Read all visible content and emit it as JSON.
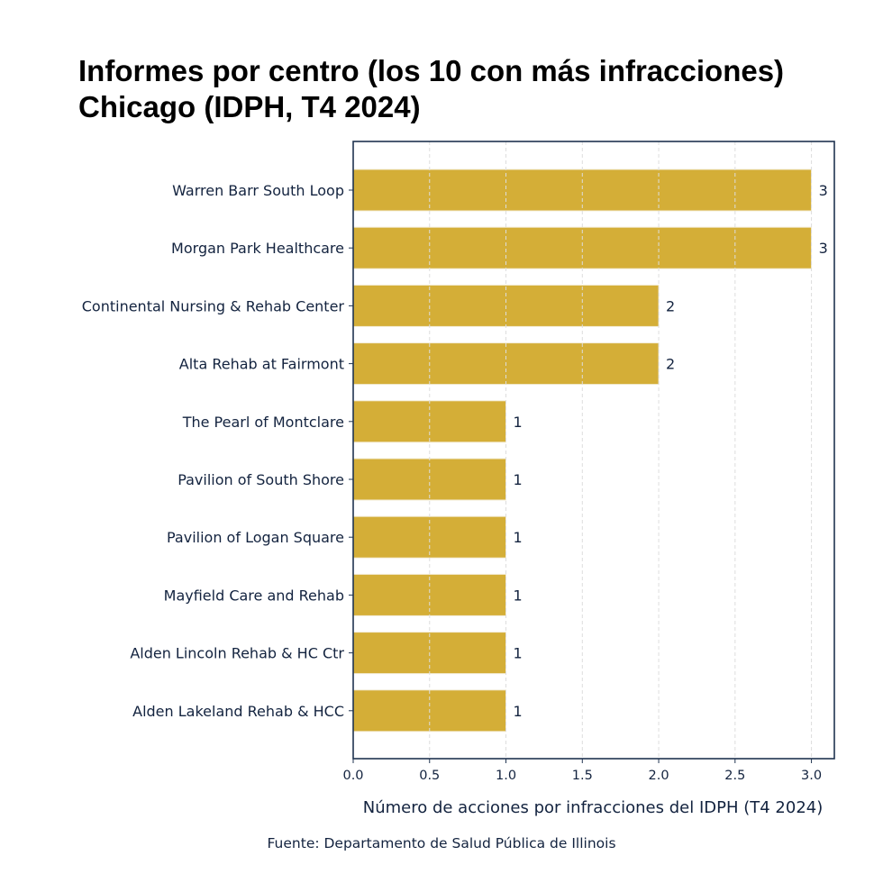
{
  "chart_data": {
    "type": "bar",
    "orientation": "horizontal",
    "title": [
      "Informes por centro (los 10 con más infracciones)",
      "Chicago (IDPH, T4 2024)"
    ],
    "categories": [
      "Warren Barr South Loop",
      "Morgan Park Healthcare",
      "Continental Nursing & Rehab Center",
      "Alta Rehab at Fairmont",
      "The Pearl of Montclare",
      "Pavilion of South Shore",
      "Pavilion of Logan Square",
      "Mayfield Care and Rehab",
      "Alden Lincoln Rehab & HC Ctr",
      "Alden Lakeland Rehab & HCC"
    ],
    "values": [
      3,
      3,
      2,
      2,
      1,
      1,
      1,
      1,
      1,
      1
    ],
    "xlabel": "Número de acciones por infracciones del IDPH (T4 2024)",
    "ylabel": "",
    "xlim": [
      0,
      3.15
    ],
    "xticks": [
      "0.0",
      "0.5",
      "1.0",
      "1.5",
      "2.0",
      "2.5",
      "3.0"
    ],
    "grid": "x dashed",
    "data_labels": true,
    "colors": {
      "bar": "#d4ae37",
      "text": "#13233f",
      "axis": "#1f3350",
      "grid": "#dddddd"
    },
    "source": "Fuente: Departamento de Salud Pública de Illinois"
  }
}
